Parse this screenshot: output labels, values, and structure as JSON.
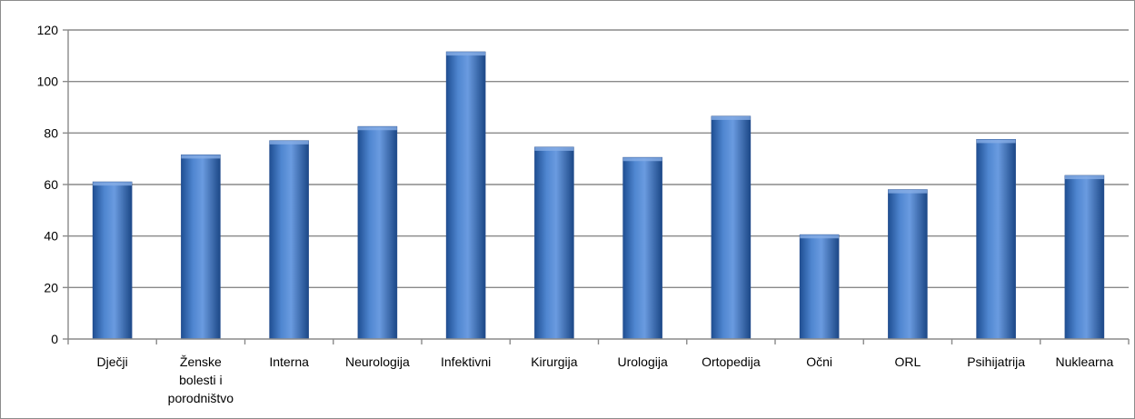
{
  "chart_data": {
    "type": "bar",
    "title": "",
    "xlabel": "",
    "ylabel": "",
    "ylim": [
      0,
      120
    ],
    "yticks": [
      0,
      20,
      40,
      60,
      80,
      100,
      120
    ],
    "grid": true,
    "legend": "none",
    "categories": [
      [
        "Dječji"
      ],
      [
        "Ženske",
        "bolesti i",
        "porodništvo"
      ],
      [
        "Interna"
      ],
      [
        "Neurologija"
      ],
      [
        "Infektivni"
      ],
      [
        "Kirurgija"
      ],
      [
        "Urologija"
      ],
      [
        "Ortopedija"
      ],
      [
        "Očni"
      ],
      [
        "ORL"
      ],
      [
        "Psihijatrija"
      ],
      [
        "Nuklearna"
      ]
    ],
    "values": [
      61,
      71.5,
      77,
      82.5,
      111.5,
      74.5,
      70.5,
      86.5,
      40.5,
      58,
      77.5,
      63.5
    ],
    "bar_color": "#3a72c0"
  }
}
